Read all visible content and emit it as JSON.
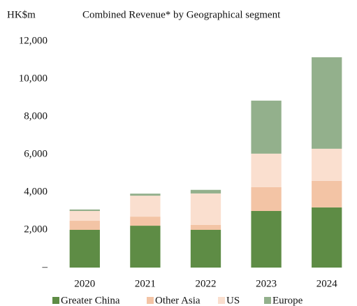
{
  "chart_data": {
    "type": "stacked_bar",
    "title": "Combined Revenue* by Geographical segment",
    "y_label": "HK$m",
    "categories": [
      "2020",
      "2021",
      "2022",
      "2023",
      "2024"
    ],
    "series": [
      {
        "name": "Greater China",
        "color": "#5e8c45",
        "values": [
          2000,
          2220,
          2000,
          3000,
          3190
        ]
      },
      {
        "name": "Other Asia",
        "color": "#f3c4a5",
        "values": [
          480,
          480,
          260,
          1260,
          1410
        ]
      },
      {
        "name": "US",
        "color": "#fadfcf",
        "values": [
          520,
          1110,
          1670,
          1780,
          1700
        ]
      },
      {
        "name": "Europe",
        "color": "#93b08c",
        "values": [
          80,
          110,
          190,
          2810,
          4850
        ]
      }
    ],
    "ylim": [
      0,
      12000
    ],
    "yticks": [
      {
        "value": 0,
        "label": "–"
      },
      {
        "value": 2000,
        "label": "2,000"
      },
      {
        "value": 4000,
        "label": "4,000"
      },
      {
        "value": 6000,
        "label": "6,000"
      },
      {
        "value": 8000,
        "label": "8,000"
      },
      {
        "value": 10000,
        "label": "10,000"
      },
      {
        "value": 12000,
        "label": "12,000"
      }
    ],
    "grid": false,
    "legend": "bottom"
  }
}
